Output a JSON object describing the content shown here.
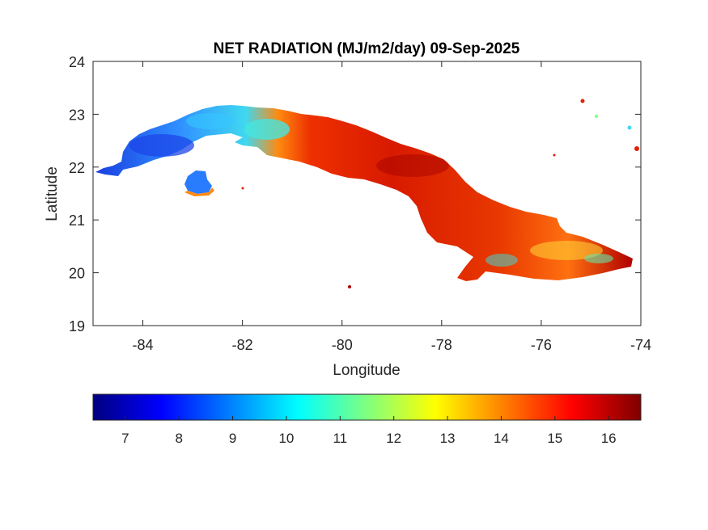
{
  "title": "NET RADIATION (MJ/m2/day) 09-Sep-2025",
  "map": {
    "xlabel": "Longitude",
    "ylabel": "Latitude",
    "xlim": [
      -85,
      -74
    ],
    "ylim": [
      19,
      24
    ],
    "xticks": [
      -84,
      -82,
      -80,
      -78,
      -76,
      -74
    ],
    "yticks": [
      19,
      20,
      21,
      22,
      23,
      24
    ],
    "xtick_labels": [
      "-84",
      "-82",
      "-80",
      "-78",
      "-76",
      "-74"
    ],
    "ytick_labels": [
      "19",
      "20",
      "21",
      "22",
      "23",
      "24"
    ],
    "box": true,
    "grid": false,
    "land_color_note": "values from about 8 (blue, west) to 16.5 (dark red, east)"
  },
  "colorbar": {
    "colormap": "jet",
    "range": [
      6.4,
      16.6
    ],
    "ticks": [
      7,
      8,
      9,
      10,
      11,
      12,
      13,
      14,
      15,
      16
    ],
    "tick_labels": [
      "7",
      "8",
      "9",
      "10",
      "11",
      "12",
      "13",
      "14",
      "15",
      "16"
    ],
    "orientation": "horizontal",
    "placement": "below"
  },
  "colors": {
    "jet_stops": [
      "#00007f",
      "#0000ff",
      "#007fff",
      "#00ffff",
      "#7fff7f",
      "#ffff00",
      "#ff7f00",
      "#ff0000",
      "#7f0000"
    ],
    "west_region": "#2a6cff",
    "mid_region": "#38d8e8",
    "east_region": "#e02000"
  }
}
